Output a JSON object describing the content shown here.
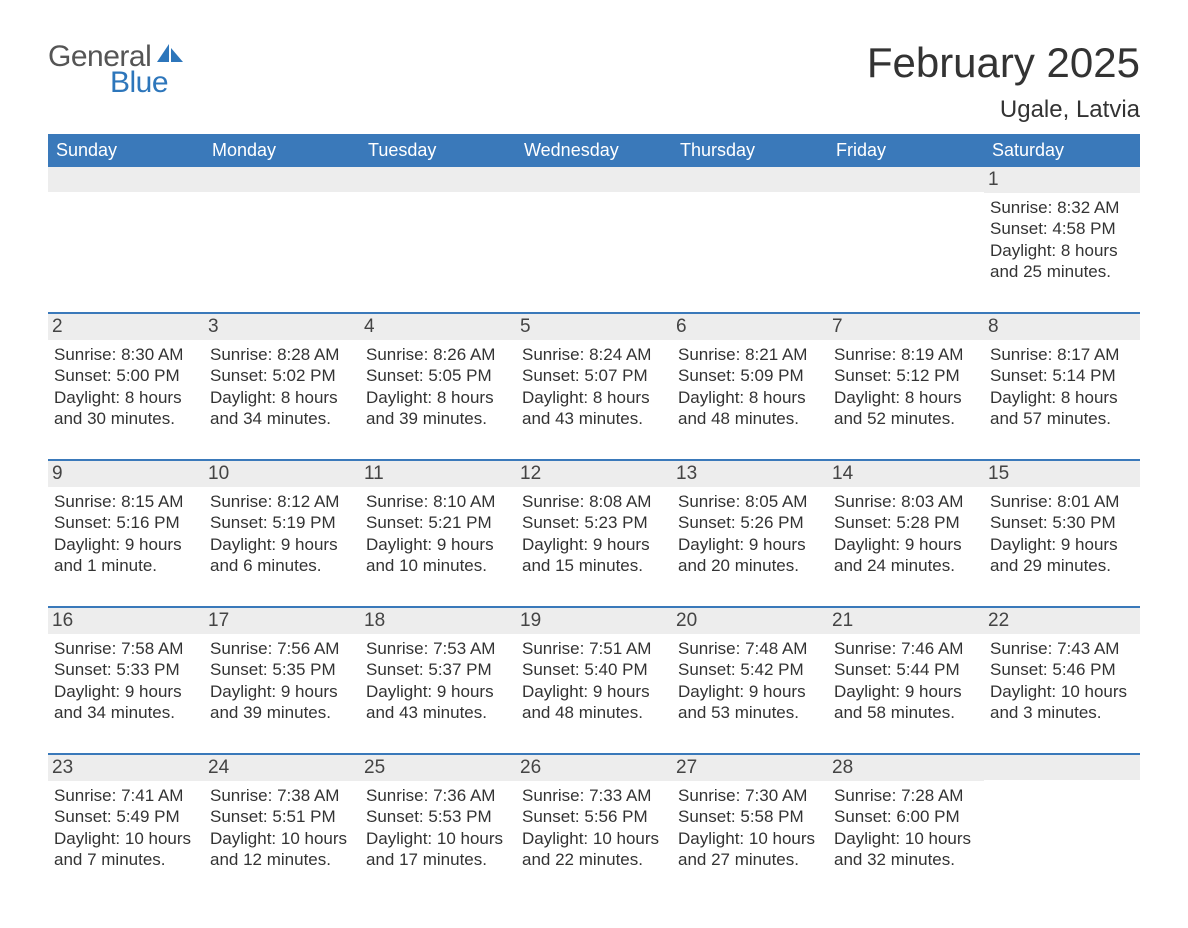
{
  "brand": {
    "word1": "General",
    "word2": "Blue",
    "sail_color": "#2d76bb",
    "text_gray": "#555555"
  },
  "title": "February 2025",
  "location": "Ugale, Latvia",
  "colors": {
    "header_bg": "#3a79ba",
    "header_text": "#ffffff",
    "daynum_bg": "#ededed",
    "row_border": "#3a79ba",
    "body_text": "#333333"
  },
  "weekdays": [
    "Sunday",
    "Monday",
    "Tuesday",
    "Wednesday",
    "Thursday",
    "Friday",
    "Saturday"
  ],
  "weeks": [
    [
      null,
      null,
      null,
      null,
      null,
      null,
      {
        "n": "1",
        "sunrise": "8:32 AM",
        "sunset": "4:58 PM",
        "daylight": "8 hours and 25 minutes."
      }
    ],
    [
      {
        "n": "2",
        "sunrise": "8:30 AM",
        "sunset": "5:00 PM",
        "daylight": "8 hours and 30 minutes."
      },
      {
        "n": "3",
        "sunrise": "8:28 AM",
        "sunset": "5:02 PM",
        "daylight": "8 hours and 34 minutes."
      },
      {
        "n": "4",
        "sunrise": "8:26 AM",
        "sunset": "5:05 PM",
        "daylight": "8 hours and 39 minutes."
      },
      {
        "n": "5",
        "sunrise": "8:24 AM",
        "sunset": "5:07 PM",
        "daylight": "8 hours and 43 minutes."
      },
      {
        "n": "6",
        "sunrise": "8:21 AM",
        "sunset": "5:09 PM",
        "daylight": "8 hours and 48 minutes."
      },
      {
        "n": "7",
        "sunrise": "8:19 AM",
        "sunset": "5:12 PM",
        "daylight": "8 hours and 52 minutes."
      },
      {
        "n": "8",
        "sunrise": "8:17 AM",
        "sunset": "5:14 PM",
        "daylight": "8 hours and 57 minutes."
      }
    ],
    [
      {
        "n": "9",
        "sunrise": "8:15 AM",
        "sunset": "5:16 PM",
        "daylight": "9 hours and 1 minute."
      },
      {
        "n": "10",
        "sunrise": "8:12 AM",
        "sunset": "5:19 PM",
        "daylight": "9 hours and 6 minutes."
      },
      {
        "n": "11",
        "sunrise": "8:10 AM",
        "sunset": "5:21 PM",
        "daylight": "9 hours and 10 minutes."
      },
      {
        "n": "12",
        "sunrise": "8:08 AM",
        "sunset": "5:23 PM",
        "daylight": "9 hours and 15 minutes."
      },
      {
        "n": "13",
        "sunrise": "8:05 AM",
        "sunset": "5:26 PM",
        "daylight": "9 hours and 20 minutes."
      },
      {
        "n": "14",
        "sunrise": "8:03 AM",
        "sunset": "5:28 PM",
        "daylight": "9 hours and 24 minutes."
      },
      {
        "n": "15",
        "sunrise": "8:01 AM",
        "sunset": "5:30 PM",
        "daylight": "9 hours and 29 minutes."
      }
    ],
    [
      {
        "n": "16",
        "sunrise": "7:58 AM",
        "sunset": "5:33 PM",
        "daylight": "9 hours and 34 minutes."
      },
      {
        "n": "17",
        "sunrise": "7:56 AM",
        "sunset": "5:35 PM",
        "daylight": "9 hours and 39 minutes."
      },
      {
        "n": "18",
        "sunrise": "7:53 AM",
        "sunset": "5:37 PM",
        "daylight": "9 hours and 43 minutes."
      },
      {
        "n": "19",
        "sunrise": "7:51 AM",
        "sunset": "5:40 PM",
        "daylight": "9 hours and 48 minutes."
      },
      {
        "n": "20",
        "sunrise": "7:48 AM",
        "sunset": "5:42 PM",
        "daylight": "9 hours and 53 minutes."
      },
      {
        "n": "21",
        "sunrise": "7:46 AM",
        "sunset": "5:44 PM",
        "daylight": "9 hours and 58 minutes."
      },
      {
        "n": "22",
        "sunrise": "7:43 AM",
        "sunset": "5:46 PM",
        "daylight": "10 hours and 3 minutes."
      }
    ],
    [
      {
        "n": "23",
        "sunrise": "7:41 AM",
        "sunset": "5:49 PM",
        "daylight": "10 hours and 7 minutes."
      },
      {
        "n": "24",
        "sunrise": "7:38 AM",
        "sunset": "5:51 PM",
        "daylight": "10 hours and 12 minutes."
      },
      {
        "n": "25",
        "sunrise": "7:36 AM",
        "sunset": "5:53 PM",
        "daylight": "10 hours and 17 minutes."
      },
      {
        "n": "26",
        "sunrise": "7:33 AM",
        "sunset": "5:56 PM",
        "daylight": "10 hours and 22 minutes."
      },
      {
        "n": "27",
        "sunrise": "7:30 AM",
        "sunset": "5:58 PM",
        "daylight": "10 hours and 27 minutes."
      },
      {
        "n": "28",
        "sunrise": "7:28 AM",
        "sunset": "6:00 PM",
        "daylight": "10 hours and 32 minutes."
      },
      null
    ]
  ],
  "labels": {
    "sunrise": "Sunrise: ",
    "sunset": "Sunset: ",
    "daylight": "Daylight: "
  }
}
